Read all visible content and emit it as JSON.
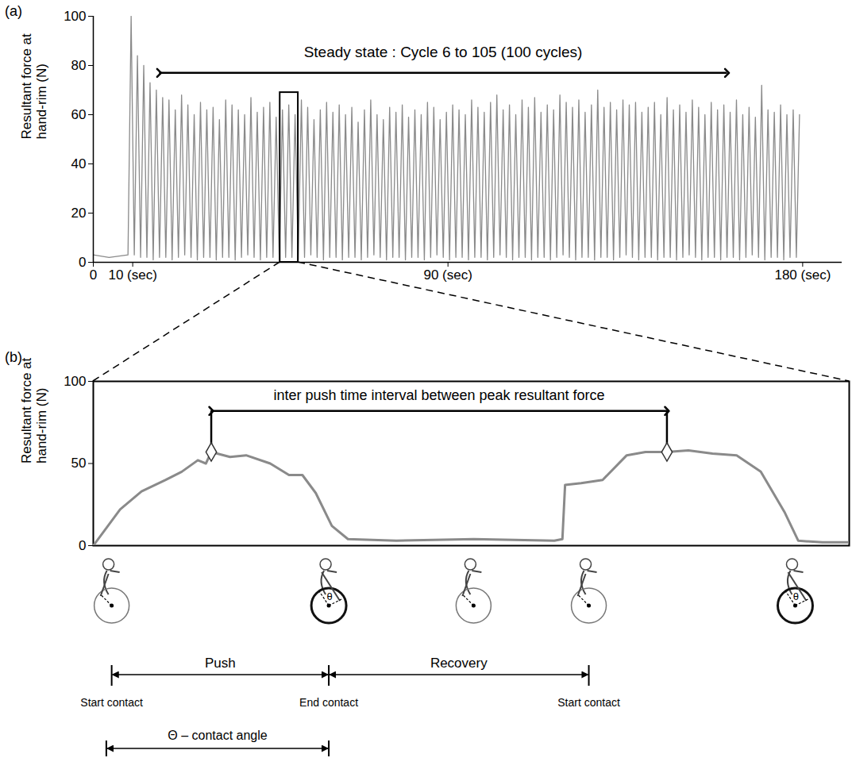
{
  "chart_data": [
    {
      "type": "line",
      "panel_label": "(a)",
      "ylabel": "Resultant force at hand-rim (N)",
      "color": "#8a8a8a",
      "grid": false,
      "xlim": [
        0,
        190
      ],
      "xticks": [
        0,
        {
          "value": 10,
          "label": "10 (sec)"
        },
        {
          "value": 90,
          "label": "90 (sec)"
        },
        {
          "value": 180,
          "label": "180 (sec)"
        }
      ],
      "ylim": [
        0,
        100
      ],
      "yticks": [
        0,
        20,
        40,
        60,
        80,
        100
      ],
      "x": [
        0,
        4,
        8.8,
        9.6,
        10.4,
        11.2,
        12,
        12.8,
        13.6,
        14.4,
        15.2,
        16,
        16.8,
        17.6,
        18.4,
        19.2,
        20,
        20.8,
        21.6,
        22.4,
        23.2,
        24,
        24.8,
        25.6,
        26.4,
        27.2,
        28,
        28.8,
        29.6,
        30.4,
        31.2,
        32,
        32.8,
        33.6,
        34.4,
        35.2,
        36,
        36.8,
        37.6,
        38.4,
        39.2,
        40,
        40.8,
        41.6,
        42.4,
        43.2,
        44,
        44.8,
        45.6,
        46.4,
        47.2,
        48,
        48.8,
        49.6,
        50.4,
        51.2,
        52,
        52.8,
        53.6,
        54.4,
        55.2,
        56,
        56.8,
        57.6,
        58.4,
        59.2,
        60,
        60.8,
        61.6,
        62.4,
        63.2,
        64,
        64.8,
        65.6,
        66.4,
        67.2,
        68,
        68.8,
        69.6,
        70.4,
        71.2,
        72,
        72.8,
        73.6,
        74.4,
        75.2,
        76,
        76.8,
        77.6,
        78.4,
        79.2,
        80,
        80.8,
        81.6,
        82.4,
        83.2,
        84,
        84.8,
        85.6,
        86.4,
        87.2,
        88,
        88.8,
        89.6,
        90.4,
        91.2,
        92,
        92.8,
        93.6,
        94.4,
        95.2,
        96,
        96.8,
        97.6,
        98.4,
        99.2,
        100,
        100.8,
        101.6,
        102.4,
        103.2,
        104,
        104.8,
        105.6,
        106.4,
        107.2,
        108,
        108.8,
        109.6,
        110.4,
        111.2,
        112,
        112.8,
        113.6,
        114.4,
        115.2,
        116,
        116.8,
        117.6,
        118.4,
        119.2,
        120,
        120.8,
        121.6,
        122.4,
        123.2,
        124,
        124.8,
        125.6,
        126.4,
        127.2,
        128,
        128.8,
        129.6,
        130.4,
        131.2,
        132,
        132.8,
        133.6,
        134.4,
        135.2,
        136,
        136.8,
        137.6,
        138.4,
        139.2,
        140,
        140.8,
        141.6,
        142.4,
        143.2,
        144,
        144.8,
        145.6,
        146.4,
        147.2,
        148,
        148.8,
        149.6,
        150.4,
        151.2,
        152,
        152.8,
        153.6,
        154.4,
        155.2,
        156,
        156.8,
        157.6,
        158.4,
        159.2,
        160,
        160.8,
        161.6,
        162.4,
        163.2,
        164,
        164.8,
        165.6,
        166.4,
        167.2,
        168,
        168.8,
        169.6,
        170.4,
        171.2,
        172,
        172.8,
        173.6,
        174.4,
        175.2,
        176,
        176.8,
        177.6,
        178.4,
        179.2
      ],
      "values": [
        3,
        2,
        3,
        100,
        3,
        84,
        2,
        80,
        2,
        73,
        1,
        70,
        2,
        67,
        2,
        66,
        1,
        62,
        2,
        68,
        3,
        64,
        2,
        60,
        1,
        65,
        2,
        62,
        2,
        63,
        1,
        58,
        2,
        66,
        2,
        64,
        1,
        62,
        2,
        60,
        3,
        67,
        2,
        61,
        1,
        63,
        2,
        65,
        2,
        59,
        1,
        62,
        2,
        64,
        2,
        60,
        1,
        66,
        2,
        63,
        3,
        58,
        2,
        62,
        1,
        65,
        2,
        61,
        2,
        64,
        1,
        60,
        2,
        63,
        2,
        57,
        1,
        62,
        2,
        66,
        3,
        60,
        2,
        58,
        1,
        63,
        2,
        61,
        2,
        64,
        1,
        59,
        2,
        62,
        2,
        60,
        1,
        65,
        2,
        63,
        3,
        58,
        2,
        61,
        1,
        64,
        2,
        62,
        2,
        60,
        1,
        66,
        2,
        63,
        2,
        61,
        1,
        65,
        2,
        68,
        3,
        62,
        2,
        64,
        1,
        60,
        2,
        66,
        2,
        63,
        1,
        67,
        2,
        61,
        2,
        64,
        1,
        62,
        2,
        68,
        3,
        65,
        2,
        63,
        1,
        66,
        2,
        61,
        2,
        64,
        1,
        70,
        2,
        63,
        2,
        65,
        1,
        62,
        2,
        66,
        3,
        64,
        2,
        65,
        1,
        61,
        2,
        63,
        2,
        65,
        1,
        60,
        2,
        67,
        2,
        62,
        1,
        64,
        2,
        61,
        3,
        66,
        2,
        63,
        1,
        60,
        2,
        65,
        2,
        62,
        1,
        64,
        2,
        61,
        2,
        66,
        1,
        60,
        2,
        63,
        3,
        59,
        2,
        72,
        1,
        62,
        2,
        61,
        2,
        64,
        1,
        60,
        2,
        62,
        2,
        60
      ],
      "annotations": [
        {
          "text": "Steady state : Cycle 6 to 105 (100 cycles)",
          "x": [
            16.7,
            160.8
          ],
          "y": 77
        }
      ],
      "zoom_window": {
        "x": [
          47.4,
          52
        ],
        "y": [
          0,
          69
        ]
      }
    },
    {
      "type": "line",
      "panel_label": "(b)",
      "ylabel": "Resultant force at hand-rim (N)",
      "color": "#8a8a8a",
      "grid": false,
      "tick_labels": "y",
      "xlim": [
        0,
        2.82
      ],
      "ylim": [
        0,
        100
      ],
      "yticks": [
        0,
        50,
        100
      ],
      "x": [
        0,
        0.1,
        0.18,
        0.27,
        0.33,
        0.39,
        0.42,
        0.44,
        0.51,
        0.57,
        0.66,
        0.73,
        0.78,
        0.83,
        0.89,
        0.95,
        1.13,
        1.42,
        1.72,
        1.75,
        1.76,
        1.82,
        1.9,
        1.99,
        2.06,
        2.14,
        2.22,
        2.31,
        2.4,
        2.49,
        2.58,
        2.63,
        2.72,
        2.82
      ],
      "values": [
        0,
        22,
        33,
        40,
        45,
        52,
        50,
        57,
        54,
        55,
        50,
        43,
        43,
        32,
        12,
        4,
        3,
        4,
        3,
        4,
        37,
        38,
        40,
        55,
        57,
        57,
        58,
        56,
        55,
        45,
        20,
        3,
        2,
        2
      ],
      "peaks": {
        "x": [
          0.44,
          2.14
        ],
        "values": [
          57,
          57
        ],
        "marker": "diamond"
      },
      "annotations": [
        {
          "text": "inter push time interval between peak resultant force",
          "x": [
            0.44,
            2.14
          ],
          "y": 82
        }
      ],
      "icons": [
        {
          "x": 0.07
        },
        {
          "x": 0.88,
          "angle_label": "θ"
        },
        {
          "x": 1.42
        },
        {
          "x": 1.85
        },
        {
          "x": 2.62,
          "angle_label": "θ"
        }
      ],
      "phases": [
        {
          "label": "Push",
          "x": [
            0.07,
            0.88
          ]
        },
        {
          "label": "Recovery",
          "x": [
            0.88,
            1.85
          ]
        }
      ],
      "events": [
        {
          "label": "Start contact",
          "x": 0.07
        },
        {
          "label": "End contact",
          "x": 0.88
        },
        {
          "label": "Start contact",
          "x": 1.85
        }
      ],
      "contact_angle": {
        "label": "Θ – contact angle",
        "x": [
          0.05,
          0.88
        ]
      }
    }
  ]
}
